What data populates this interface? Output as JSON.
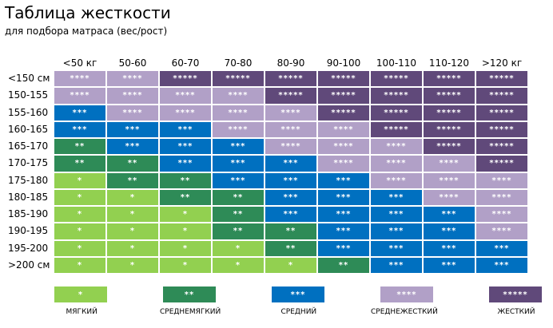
{
  "title": "Таблица жесткости",
  "subtitle": "для подбора матраса (вес/рост)",
  "colors": {
    "1": "#92d050",
    "2": "#2e8b57",
    "3": "#0070c0",
    "4": "#b1a0c7",
    "5": "#60497a"
  },
  "columns": [
    "<50 кг",
    "50-60",
    "60-70",
    "70-80",
    "80-90",
    "90-100",
    "100-110",
    "110-120",
    ">120 кг"
  ],
  "rows": [
    {
      "label": "<150 см",
      "levels": [
        4,
        4,
        5,
        5,
        5,
        5,
        5,
        5,
        5
      ]
    },
    {
      "label": "150-155",
      "levels": [
        4,
        4,
        4,
        4,
        5,
        5,
        5,
        5,
        5
      ]
    },
    {
      "label": "155-160",
      "levels": [
        3,
        4,
        4,
        4,
        4,
        5,
        5,
        5,
        5
      ]
    },
    {
      "label": "160-165",
      "levels": [
        3,
        3,
        3,
        4,
        4,
        4,
        5,
        5,
        5
      ]
    },
    {
      "label": "165-170",
      "levels": [
        2,
        3,
        3,
        3,
        4,
        4,
        4,
        5,
        5
      ]
    },
    {
      "label": "170-175",
      "levels": [
        2,
        2,
        3,
        3,
        3,
        4,
        4,
        4,
        5
      ]
    },
    {
      "label": "175-180",
      "levels": [
        1,
        2,
        2,
        3,
        3,
        3,
        4,
        4,
        4
      ]
    },
    {
      "label": "180-185",
      "levels": [
        1,
        1,
        2,
        2,
        3,
        3,
        3,
        4,
        4
      ]
    },
    {
      "label": "185-190",
      "levels": [
        1,
        1,
        1,
        2,
        3,
        3,
        3,
        3,
        4
      ]
    },
    {
      "label": "190-195",
      "levels": [
        1,
        1,
        1,
        2,
        2,
        3,
        3,
        3,
        4
      ]
    },
    {
      "label": "195-200",
      "levels": [
        1,
        1,
        1,
        1,
        2,
        3,
        3,
        3,
        3
      ]
    },
    {
      "label": ">200 см",
      "levels": [
        1,
        1,
        1,
        1,
        1,
        2,
        3,
        3,
        3
      ]
    }
  ],
  "marks": {
    "1": "*",
    "2": "**",
    "3": "***",
    "4": "****",
    "5": "*****"
  },
  "legend": [
    {
      "level": 1,
      "mark": "*",
      "label": "МЯГКИЙ"
    },
    {
      "level": 2,
      "mark": "**",
      "label": "СРЕДНЕМЯГКИЙ"
    },
    {
      "level": 3,
      "mark": "***",
      "label": "СРЕДНИЙ"
    },
    {
      "level": 4,
      "mark": "****",
      "label": "СРЕДНЕЖЕСТКИЙ"
    },
    {
      "level": 5,
      "mark": "*****",
      "label": "ЖЕСТКИЙ"
    }
  ]
}
